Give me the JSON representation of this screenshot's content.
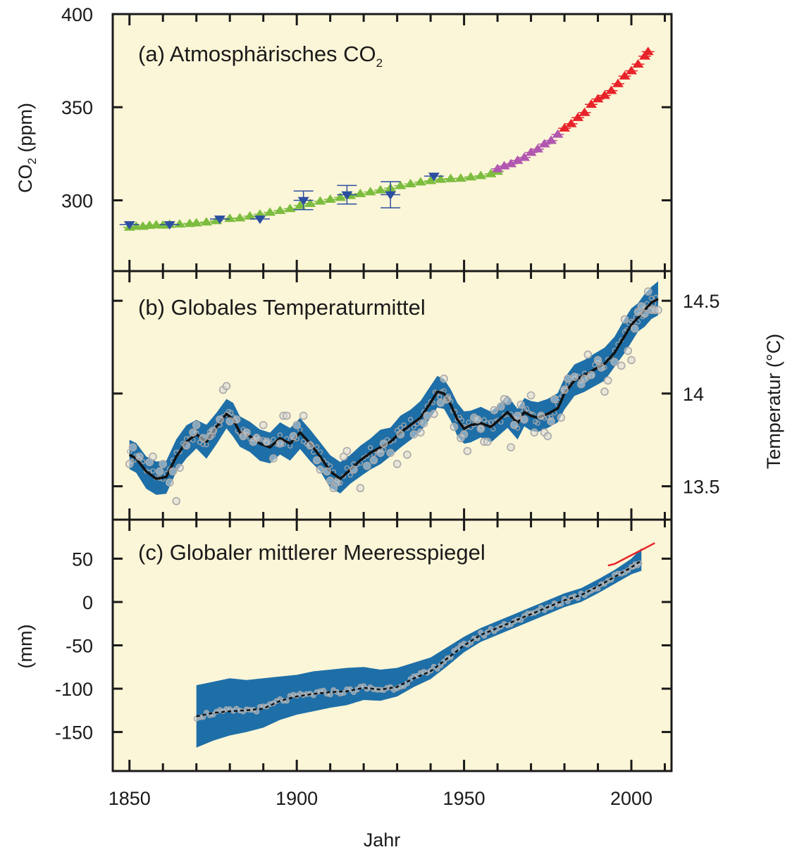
{
  "colors": {
    "plot_background": "#fcf6d8",
    "frame": "#1a1a1a",
    "ice_core_ch4": "#7cbd3f",
    "direct_south_pole": "#b257b0",
    "direct_mauna_loa": "#e8232a",
    "ice_core_other": "#2c4fa0",
    "uncertainty_band": "#1e6fa8",
    "smooth_line": "#111111",
    "annual_point": "#a9a9a9",
    "satellite_line": "#e8232a"
  },
  "chart_data": [
    {
      "type": "scatter",
      "panel": "a",
      "title": "(a) Atmosphärisches CO",
      "title_subscript": "2",
      "ylabel": "CO",
      "ylabel_subscript": "2",
      "ylabel_unit": " (ppm)",
      "ylim": [
        262,
        400
      ],
      "xlim": [
        1845,
        2012
      ],
      "yticks": [
        300,
        350,
        400
      ],
      "ytick_labels": [
        "300",
        "350",
        "400"
      ],
      "series": [
        {
          "marker": "triangle-up",
          "color_key": "ice_core_ch4",
          "x": [
            1850,
            1852,
            1854,
            1856,
            1858,
            1860,
            1862,
            1865,
            1868,
            1870,
            1873,
            1876,
            1880,
            1883,
            1886,
            1889,
            1892,
            1895,
            1898,
            1901,
            1904,
            1907,
            1910,
            1913,
            1916,
            1919,
            1922,
            1925,
            1928,
            1931,
            1934,
            1937,
            1940,
            1943,
            1946,
            1949,
            1952,
            1955,
            1958,
            1960
          ],
          "y": [
            285.5,
            286,
            286,
            286.5,
            286.8,
            286.6,
            287,
            287.2,
            287.5,
            287.8,
            288.3,
            289,
            290.2,
            290.5,
            291.5,
            292.5,
            293.5,
            294.5,
            295.5,
            297.2,
            298.2,
            299.5,
            300.5,
            301.5,
            302.5,
            303.5,
            304.5,
            305.5,
            306.5,
            307.8,
            308.8,
            309.8,
            310.5,
            311.2,
            311.6,
            311.8,
            312.5,
            313.2,
            314.2,
            315.5
          ]
        },
        {
          "marker": "triangle-up",
          "color_key": "direct_south_pole",
          "x": [
            1960,
            1962,
            1964,
            1966,
            1968,
            1970,
            1972,
            1974,
            1976,
            1978
          ],
          "y": [
            316.9,
            318.4,
            319.6,
            321.4,
            323,
            325.7,
            327.5,
            330.2,
            332.1,
            335.4
          ]
        },
        {
          "marker": "triangle-up",
          "color_key": "direct_mauna_loa",
          "x": [
            1980,
            1982,
            1984,
            1986,
            1988,
            1990,
            1992,
            1994,
            1996,
            1998,
            2000,
            2002,
            2004,
            2005
          ],
          "y": [
            338.7,
            341.1,
            344.4,
            347.1,
            351.5,
            354.4,
            356.3,
            358.9,
            362.6,
            366.7,
            369.5,
            373.1,
            377.4,
            379.8
          ]
        },
        {
          "marker": "triangle-down",
          "color_key": "ice_core_other",
          "x": [
            1850,
            1862,
            1877,
            1889,
            1902,
            1915,
            1928,
            1941
          ],
          "y": [
            287,
            287,
            290,
            290,
            300,
            303,
            303,
            313
          ],
          "error": [
            0,
            0,
            0,
            0,
            5,
            5,
            7,
            0
          ]
        }
      ]
    },
    {
      "type": "line",
      "panel": "b",
      "title": "(b) Globales Temperaturmittel",
      "ylabel": "Temperatur (°C)",
      "ylim": [
        13.32,
        14.66
      ],
      "xlim": [
        1845,
        2012
      ],
      "yticks": [
        13.5,
        14,
        14.5
      ],
      "ytick_labels": [
        "13.5",
        "14",
        "14.5"
      ],
      "series": [
        {
          "kind": "smoothed_with_band",
          "x": [
            1850,
            1852,
            1855,
            1858,
            1861,
            1864,
            1867,
            1870,
            1873,
            1876,
            1879,
            1881,
            1883,
            1886,
            1889,
            1892,
            1895,
            1898,
            1901,
            1904,
            1907,
            1910,
            1913,
            1916,
            1919,
            1922,
            1925,
            1928,
            1931,
            1934,
            1937,
            1940,
            1942,
            1944,
            1946,
            1948,
            1950,
            1952,
            1955,
            1958,
            1960,
            1963,
            1966,
            1968,
            1970,
            1972,
            1975,
            1978,
            1980,
            1983,
            1986,
            1989,
            1992,
            1995,
            1998,
            2000,
            2002,
            2004,
            2006,
            2008
          ],
          "y": [
            13.67,
            13.65,
            13.58,
            13.54,
            13.55,
            13.66,
            13.74,
            13.78,
            13.74,
            13.82,
            13.89,
            13.86,
            13.79,
            13.77,
            13.73,
            13.71,
            13.76,
            13.73,
            13.79,
            13.73,
            13.66,
            13.58,
            13.54,
            13.59,
            13.64,
            13.68,
            13.71,
            13.74,
            13.79,
            13.83,
            13.87,
            13.95,
            14.01,
            14.0,
            13.94,
            13.86,
            13.81,
            13.83,
            13.84,
            13.82,
            13.85,
            13.9,
            13.84,
            13.9,
            13.88,
            13.87,
            13.89,
            13.92,
            14.0,
            14.07,
            14.1,
            14.13,
            14.16,
            14.22,
            14.31,
            14.37,
            14.41,
            14.45,
            14.49,
            14.51
          ],
          "band_halfwidth": 0.085
        },
        {
          "kind": "annual_points",
          "x": [
            1850,
            1851,
            1853,
            1856,
            1857,
            1859,
            1860,
            1862,
            1863,
            1864,
            1865,
            1867,
            1869,
            1870,
            1872,
            1874,
            1875,
            1877,
            1878,
            1879,
            1880,
            1882,
            1884,
            1885,
            1887,
            1888,
            1890,
            1891,
            1893,
            1895,
            1896,
            1897,
            1899,
            1900,
            1902,
            1904,
            1906,
            1907,
            1909,
            1910,
            1911,
            1912,
            1914,
            1915,
            1917,
            1919,
            1921,
            1923,
            1925,
            1926,
            1928,
            1930,
            1931,
            1933,
            1935,
            1937,
            1938,
            1939,
            1941,
            1943,
            1944,
            1945,
            1947,
            1949,
            1950,
            1951,
            1953,
            1954,
            1955,
            1956,
            1957,
            1959,
            1961,
            1962,
            1963,
            1964,
            1965,
            1966,
            1967,
            1968,
            1970,
            1971,
            1973,
            1974,
            1975,
            1976,
            1977,
            1979,
            1980,
            1981,
            1983,
            1985,
            1986,
            1987,
            1988,
            1990,
            1991,
            1992,
            1993,
            1995,
            1997,
            1998,
            1999,
            2000,
            2001,
            2002,
            2003,
            2004,
            2005,
            2006,
            2007,
            2008
          ],
          "y": [
            13.62,
            13.71,
            13.66,
            13.63,
            13.66,
            13.58,
            13.62,
            13.52,
            13.58,
            13.42,
            13.6,
            13.72,
            13.79,
            13.83,
            13.76,
            13.77,
            13.8,
            13.86,
            14.02,
            14.04,
            13.85,
            13.86,
            13.77,
            13.79,
            13.74,
            13.76,
            13.83,
            13.74,
            13.65,
            13.73,
            13.88,
            13.88,
            13.77,
            13.83,
            13.88,
            13.72,
            13.64,
            13.59,
            13.58,
            13.53,
            13.49,
            13.52,
            13.66,
            13.69,
            13.59,
            13.49,
            13.61,
            13.64,
            13.68,
            13.73,
            13.68,
            13.62,
            13.78,
            13.67,
            13.78,
            13.79,
            13.84,
            13.88,
            13.89,
            13.95,
            14.08,
            13.97,
            13.82,
            13.76,
            13.78,
            13.69,
            13.87,
            13.86,
            13.81,
            13.74,
            13.74,
            13.91,
            13.93,
            13.97,
            13.96,
            13.71,
            13.83,
            13.88,
            13.94,
            13.86,
            13.99,
            13.79,
            13.88,
            13.79,
            13.77,
            13.85,
            13.97,
            13.87,
            14.02,
            14.08,
            14.09,
            14.05,
            14.08,
            14.21,
            14.1,
            14.18,
            14.14,
            14.01,
            14.07,
            14.17,
            14.15,
            14.4,
            14.23,
            14.18,
            14.35,
            14.44,
            14.47,
            14.43,
            14.55,
            14.45,
            14.45,
            14.45
          ]
        }
      ]
    },
    {
      "type": "line",
      "panel": "c",
      "title": "(c) Globaler mittlerer Meeresspiegel",
      "ylabel": "(mm)",
      "ylim": [
        -195,
        95
      ],
      "xlim": [
        1845,
        2012
      ],
      "yticks": [
        -150,
        -100,
        -50,
        0,
        50
      ],
      "ytick_labels": [
        "-150",
        "-100",
        "-50",
        "0",
        "50"
      ],
      "xticks": [
        1850,
        1900,
        1950,
        2000
      ],
      "xtick_labels": [
        "1850",
        "1900",
        "1950",
        "2000"
      ],
      "xlabel": "Jahr",
      "series": [
        {
          "kind": "smoothed_with_band",
          "x": [
            1870,
            1875,
            1880,
            1885,
            1890,
            1895,
            1900,
            1905,
            1910,
            1915,
            1920,
            1925,
            1930,
            1935,
            1940,
            1945,
            1950,
            1955,
            1960,
            1965,
            1970,
            1975,
            1980,
            1985,
            1990,
            1995,
            2000,
            2003
          ],
          "y": [
            -132,
            -128,
            -126,
            -125,
            -123,
            -114,
            -109,
            -106,
            -104,
            -103,
            -99,
            -101,
            -98,
            -88,
            -80,
            -65,
            -50,
            -38,
            -30,
            -22,
            -14,
            -6,
            2,
            8,
            18,
            29,
            40,
            48
          ],
          "band_low": [
            -168,
            -160,
            -154,
            -150,
            -145,
            -136,
            -130,
            -126,
            -122,
            -119,
            -113,
            -114,
            -109,
            -98,
            -89,
            -74,
            -58,
            -46,
            -38,
            -30,
            -22,
            -14,
            -6,
            0,
            10,
            21,
            32,
            36
          ],
          "band_high": [
            -96,
            -92,
            -88,
            -90,
            -88,
            -86,
            -84,
            -80,
            -78,
            -76,
            -75,
            -78,
            -76,
            -70,
            -64,
            -52,
            -40,
            -30,
            -22,
            -14,
            -6,
            2,
            10,
            16,
            26,
            37,
            50,
            62
          ]
        },
        {
          "kind": "satellite_line",
          "color_key": "satellite_line",
          "x": [
            1993,
            1995,
            1997,
            1999,
            2001,
            2003,
            2005,
            2007
          ],
          "y": [
            42,
            44,
            48,
            52,
            56,
            60,
            64,
            68
          ]
        }
      ]
    }
  ]
}
